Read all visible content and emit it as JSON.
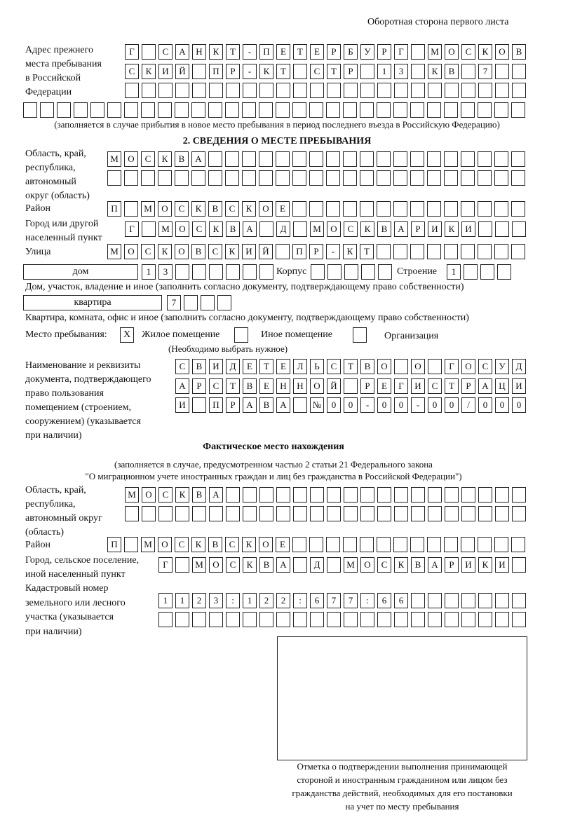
{
  "header": "Оборотная сторона первого листа",
  "prev_address": {
    "label": "Адрес прежнего\nместа пребывания\nв Российской\nФедерации",
    "rows": [
      "Г САНКТ-ПЕТЕРБУРГ МОСКОВ",
      "СКИЙ ПР-КТ СТР 13 КВ 7",
      "",
      ""
    ],
    "note": "(заполняется в случае прибытия в новое место пребывания в период последнего въезда в Российскую Федерацию)"
  },
  "section2": {
    "title": "2. СВЕДЕНИЯ О МЕСТЕ ПРЕБЫВАНИЯ",
    "region_label": "Область, край,\nреспублика,\nавтономный\nокруг (область)",
    "region_rows": [
      "МОСКВА",
      ""
    ],
    "district_label": "Район",
    "district": "П МОСКВСКОЕ",
    "city_label": "Город или другой\nнаселенный пункт",
    "city": "Г МОСКВА Д МОСКВАРИКИ",
    "street_label": "Улица",
    "street": "МОСКОВСКИЙ ПР-КТ",
    "house_type": "дом",
    "house": "13",
    "korpus_label": "Корпус",
    "korpus": "",
    "building_label": "Строение",
    "building": "1",
    "house_note": "Дом, участок, владение и иное (заполнить согласно документу, подтверждающему право собственности)",
    "flat_type": "квартира",
    "flat": "7",
    "flat_note": "Квартира, комната, офис и иное (заполнить согласно документу, подтверждающему право собственности)",
    "stay_label": "Место пребывания:",
    "options": [
      {
        "label": "Жилое помещение",
        "mark": "Х"
      },
      {
        "label": "Иное помещение",
        "mark": ""
      },
      {
        "label": "Организация",
        "mark": ""
      }
    ],
    "choose_note": "(Необходимо выбрать нужное)",
    "doc_label": "Наименование и реквизиты\nдокумента, подтверждающего\nправо пользования\nпомещением (строением,\nсооружением) (указывается\nпри наличии)",
    "doc_rows": [
      "СВИДЕТЕЛЬСТВО О ГОСУД",
      "АРСТВЕННОЙ РЕГИСТРАЦИ",
      "И ПРАВА №00-00-00/000"
    ]
  },
  "actual": {
    "title": "Фактическое место нахождения",
    "note1": "(заполняется в случае, предусмотренном частью 2 статьи 21 Федерального закона",
    "note2": "\"О миграционном учете иностранных граждан и лиц без гражданства в Российской Федерации\")",
    "region_label": "Область, край,\nреспублика,\nавтономный округ\n(область)",
    "region_rows": [
      "МОСКВА",
      ""
    ],
    "district_label": "Район",
    "district": "П МОСКВСКОЕ",
    "city_label": "Город, сельское поселение,\nиной населенный пункт",
    "city": "Г МОСКВА Д МОСКВАРИКИ",
    "cadastral_label": "Кадастровый номер\nземельного или лесного\nучастка (указывается\nпри наличии)",
    "cadastral_rows": [
      "1123:122:677:66",
      ""
    ]
  },
  "confirmation_caption": "Отметка о подтверждении выполнения принимающей\nстороной и иностранным гражданином или лицом без\nгражданства действий, необходимых для его постановки\nна учет по месту пребывания"
}
